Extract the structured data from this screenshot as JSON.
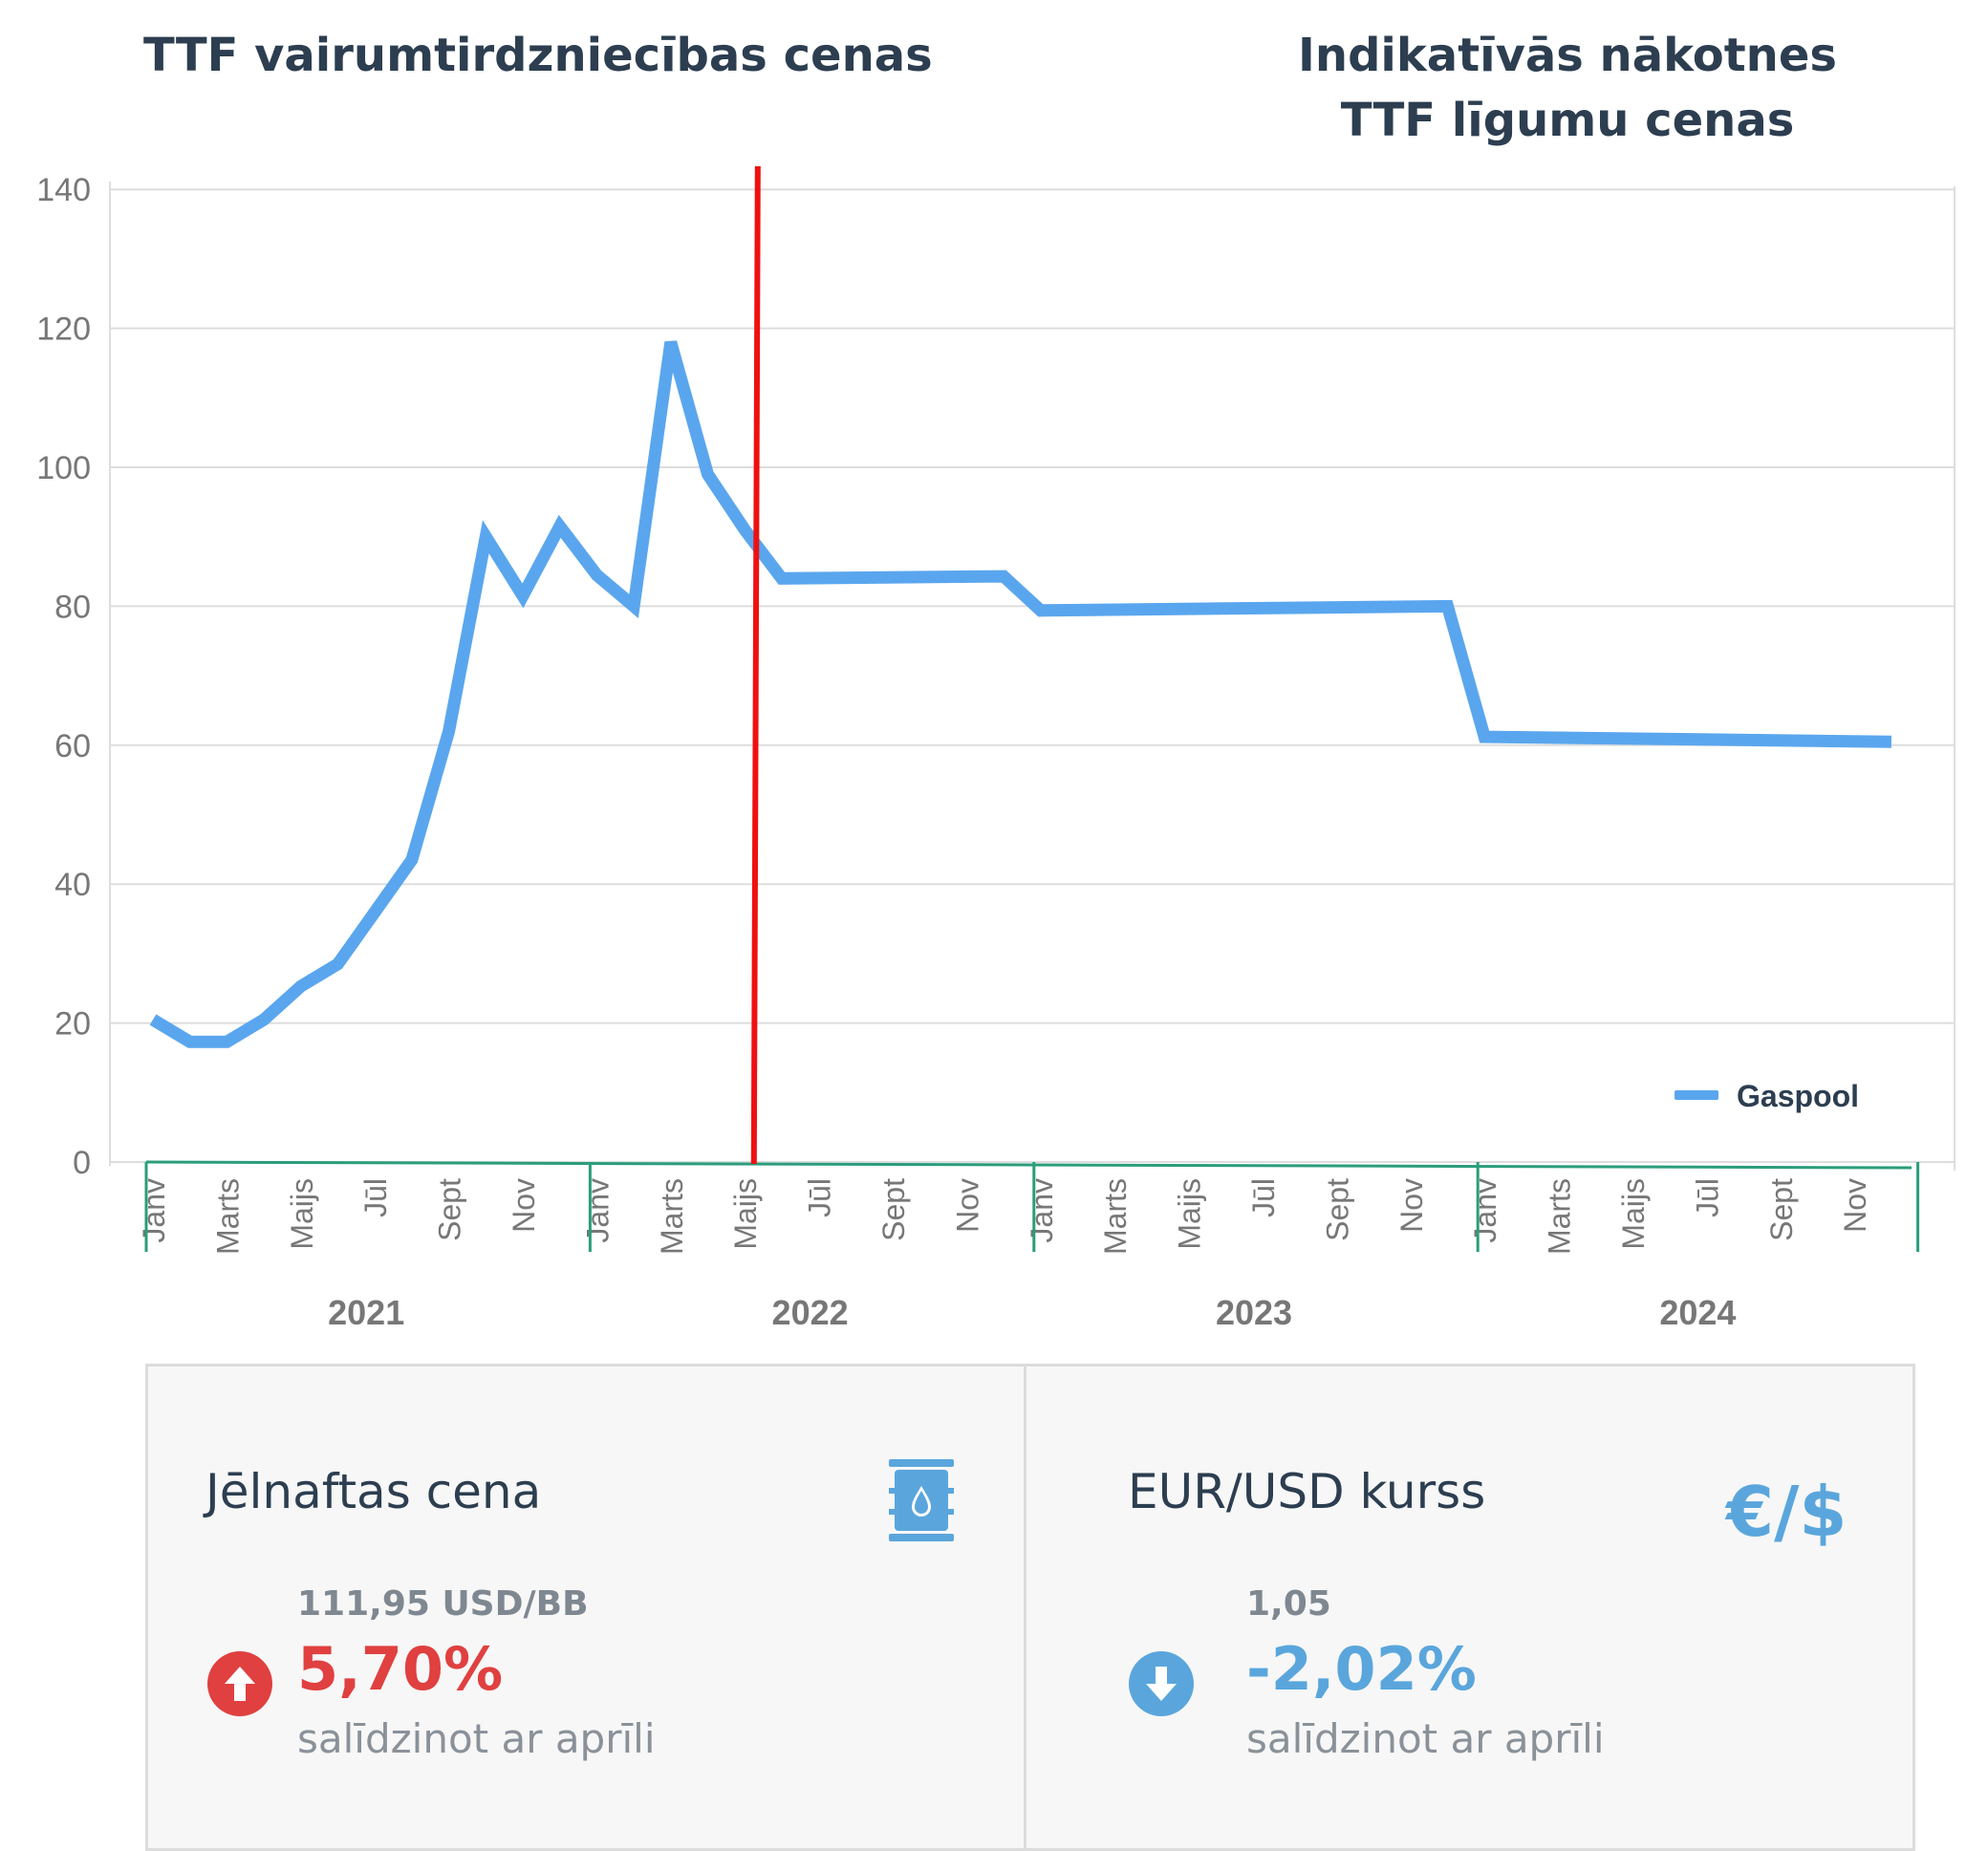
{
  "header": {
    "left_title": "TTF vairumtirdzniecības cenas",
    "right_title_line1": "Indikatīvās nākotnes",
    "right_title_line2": "TTF līgumu cenas"
  },
  "colors": {
    "series": "#5aa6ee",
    "divider": "#ee1111",
    "year_bracket": "#2a9d7a",
    "up": "#e04040",
    "down": "#5aa6dc"
  },
  "chart_data": {
    "type": "line",
    "ylim": [
      0,
      140
    ],
    "yticks": [
      0,
      20,
      40,
      60,
      80,
      100,
      120,
      140
    ],
    "grid": true,
    "legend_position": "bottom-right",
    "month_labels": [
      "Janv",
      "Marts",
      "Maijs",
      "Jūl",
      "Sept",
      "Nov"
    ],
    "years": [
      "2021",
      "2022",
      "2023",
      "2024"
    ],
    "months_per_year": 12,
    "divider_x": 16.3,
    "series": [
      {
        "name": "Gaspool",
        "x": [
          0,
          1,
          2,
          3,
          4,
          5,
          6,
          7,
          8,
          9,
          10,
          11,
          12,
          13,
          14,
          15,
          16,
          17,
          23,
          24,
          35,
          36,
          47
        ],
        "values": [
          20.5,
          17.3,
          17.3,
          20.5,
          25.3,
          28.5,
          36,
          43.5,
          62,
          90,
          81.5,
          91.5,
          84.5,
          80,
          118,
          99,
          91,
          84,
          84.3,
          79.4,
          80,
          61.2,
          60.5
        ]
      }
    ]
  },
  "panels": {
    "oil": {
      "title": "Jēlnaftas cena",
      "icon": "oil-barrel-icon",
      "value": "111,95 USD/BB",
      "change": "5,70%",
      "direction": "up",
      "note": "salīdzinot ar aprīli"
    },
    "fx": {
      "title": "EUR/USD kurss",
      "symbol": "€/$",
      "value": "1,05",
      "change": "-2,02%",
      "direction": "down",
      "note": "salīdzinot ar aprīli"
    }
  }
}
